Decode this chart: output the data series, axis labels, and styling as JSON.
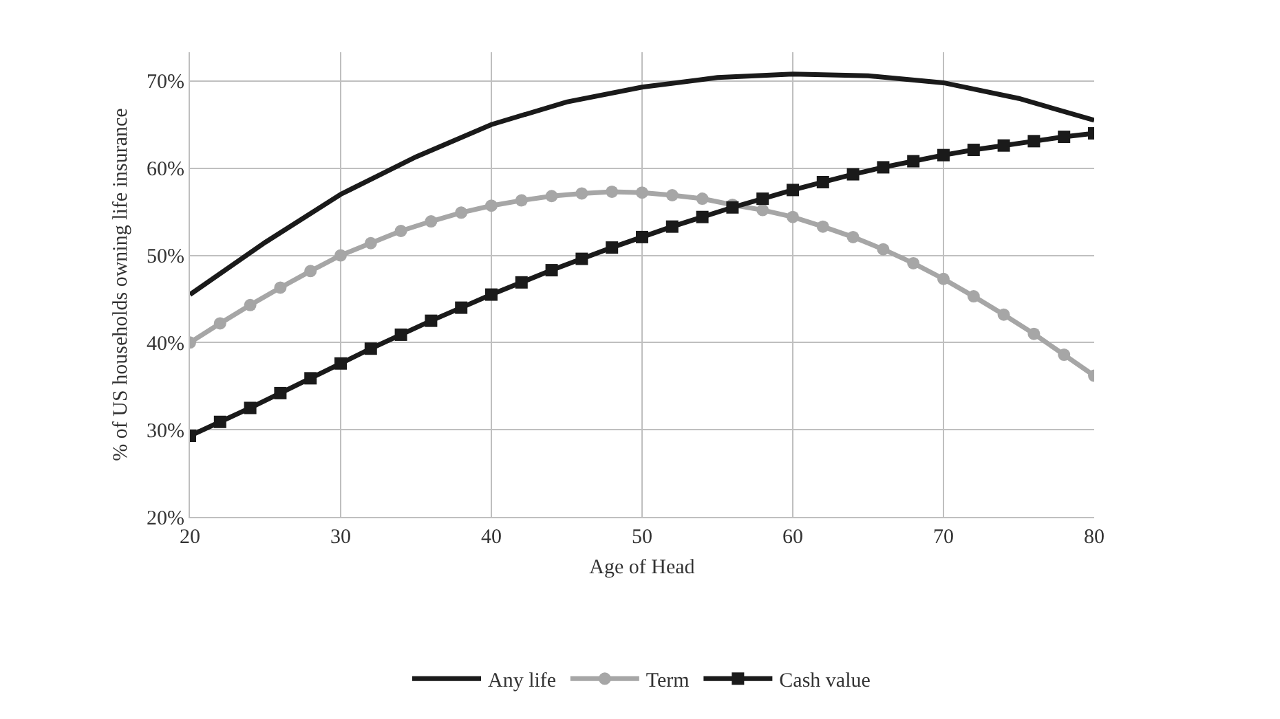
{
  "chart_data": {
    "type": "line",
    "xlabel": "Age of Head",
    "ylabel": "% of US households owning life insurance",
    "series": [
      {
        "name": "Any life",
        "color": "#1a1a1a",
        "marker": "none",
        "x": [
          20,
          25,
          30,
          35,
          40,
          45,
          50,
          55,
          60,
          65,
          70,
          75,
          80
        ],
        "values": [
          45.5,
          51.5,
          57,
          61.3,
          65,
          67.6,
          69.3,
          70.4,
          70.8,
          70.6,
          69.8,
          68,
          65.5
        ]
      },
      {
        "name": "Term",
        "color": "#a6a6a6",
        "marker": "circle",
        "x": [
          20,
          22,
          24,
          26,
          28,
          30,
          32,
          34,
          36,
          38,
          40,
          42,
          44,
          46,
          48,
          50,
          52,
          54,
          56,
          58,
          60,
          62,
          64,
          66,
          68,
          70,
          72,
          74,
          76,
          78,
          80
        ],
        "values": [
          40,
          42.2,
          44.3,
          46.3,
          48.2,
          50,
          51.4,
          52.8,
          53.9,
          54.9,
          55.7,
          56.3,
          56.8,
          57.1,
          57.3,
          57.2,
          56.9,
          56.5,
          55.8,
          55.2,
          54.4,
          53.3,
          52.1,
          50.7,
          49.1,
          47.3,
          45.3,
          43.2,
          41,
          38.6,
          36.2
        ]
      },
      {
        "name": "Cash value",
        "color": "#1a1a1a",
        "marker": "square",
        "x": [
          20,
          22,
          24,
          26,
          28,
          30,
          32,
          34,
          36,
          38,
          40,
          42,
          44,
          46,
          48,
          50,
          52,
          54,
          56,
          58,
          60,
          62,
          64,
          66,
          68,
          70,
          72,
          74,
          76,
          78,
          80
        ],
        "values": [
          29.3,
          30.9,
          32.5,
          34.2,
          35.9,
          37.6,
          39.3,
          40.9,
          42.5,
          44,
          45.5,
          46.9,
          48.3,
          49.6,
          50.9,
          52.1,
          53.3,
          54.4,
          55.5,
          56.5,
          57.5,
          58.4,
          59.3,
          60.1,
          60.8,
          61.5,
          62.1,
          62.6,
          63.1,
          63.6,
          64
        ]
      }
    ],
    "xlim": [
      20,
      80
    ],
    "xticks": [
      20,
      30,
      40,
      50,
      60,
      70,
      80
    ],
    "ylim": [
      20,
      73.3
    ],
    "yticks": [
      {
        "value": 20,
        "label": "20%"
      },
      {
        "value": 30,
        "label": "30%"
      },
      {
        "value": 40,
        "label": "40%"
      },
      {
        "value": 50,
        "label": "50%"
      },
      {
        "value": 60,
        "label": "60%"
      },
      {
        "value": 70,
        "label": "70%"
      }
    ],
    "grid": true,
    "legend": "bottom",
    "line_style": "solid"
  }
}
